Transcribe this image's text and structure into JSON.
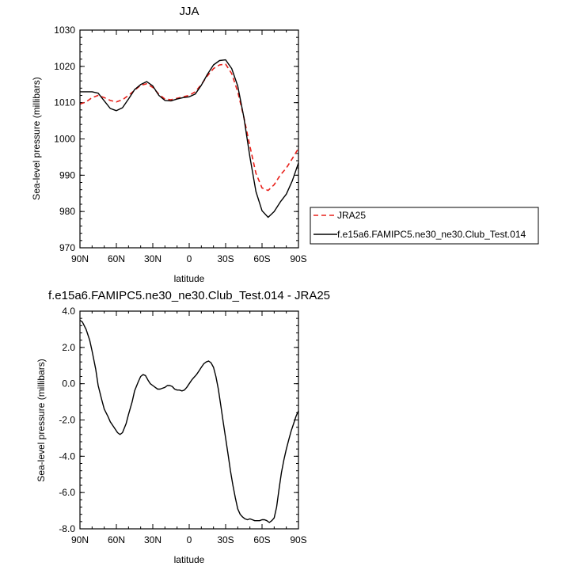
{
  "chart_data": [
    {
      "type": "line",
      "title": "JJA",
      "xlabel": "latitude",
      "ylabel": "Sea-level pressure (millibars)",
      "xlim": [
        90,
        -90
      ],
      "ylim": [
        970,
        1030
      ],
      "x_ticks": [
        90,
        60,
        30,
        0,
        -30,
        -60,
        -90
      ],
      "x_tick_labels": [
        "90N",
        "60N",
        "30N",
        "0",
        "30S",
        "60S",
        "90S"
      ],
      "y_ticks": [
        970,
        980,
        990,
        1000,
        1010,
        1020,
        1030
      ],
      "y_tick_labels": [
        "970",
        "980",
        "990",
        "1000",
        "1010",
        "1020",
        "1030"
      ],
      "grid": false,
      "legend_position": "right",
      "series": [
        {
          "name": "JRA25",
          "color": "#e8201a",
          "dash": "dashed",
          "x": [
            90,
            85,
            80,
            75,
            70,
            65,
            60,
            55,
            50,
            45,
            40,
            35,
            30,
            25,
            20,
            15,
            10,
            5,
            0,
            -5,
            -10,
            -15,
            -20,
            -25,
            -30,
            -35,
            -40,
            -45,
            -50,
            -55,
            -60,
            -65,
            -70,
            -75,
            -80,
            -85,
            -90
          ],
          "y": [
            1009.6,
            1010.2,
            1011.4,
            1012.0,
            1011.4,
            1010.6,
            1010.2,
            1010.8,
            1012.0,
            1013.4,
            1014.8,
            1015.2,
            1014.2,
            1012.3,
            1011.0,
            1010.8,
            1011.2,
            1011.6,
            1012.0,
            1013.0,
            1015.0,
            1017.4,
            1019.4,
            1020.4,
            1020.6,
            1018.0,
            1013.0,
            1006.0,
            998.0,
            990.5,
            986.5,
            985.8,
            987.4,
            990.0,
            992.0,
            994.6,
            997.4
          ]
        },
        {
          "name": "f.e15a6.FAMIPC5.ne30_ne30.Club_Test.014",
          "color": "#000000",
          "dash": "solid",
          "x": [
            90,
            85,
            80,
            75,
            70,
            65,
            60,
            55,
            50,
            45,
            40,
            35,
            30,
            25,
            20,
            15,
            10,
            5,
            0,
            -5,
            -10,
            -15,
            -20,
            -25,
            -30,
            -35,
            -40,
            -45,
            -50,
            -55,
            -60,
            -65,
            -70,
            -75,
            -80,
            -85,
            -90
          ],
          "y": [
            1013.0,
            1013.0,
            1013.0,
            1012.6,
            1010.5,
            1008.4,
            1007.8,
            1008.6,
            1011.0,
            1013.6,
            1015.0,
            1015.8,
            1014.6,
            1012.0,
            1010.6,
            1010.5,
            1011.0,
            1011.4,
            1011.6,
            1012.4,
            1014.8,
            1017.8,
            1020.4,
            1021.6,
            1021.8,
            1019.4,
            1014.6,
            1006.0,
            995.0,
            985.5,
            980.2,
            978.4,
            980.0,
            982.6,
            984.8,
            988.5,
            993.4
          ]
        }
      ]
    },
    {
      "type": "line",
      "title": "f.e15a6.FAMIPC5.ne30_ne30.Club_Test.014 - JRA25",
      "xlabel": "latitude",
      "ylabel": "Sea-level pressure (millibars)",
      "xlim": [
        90,
        -90
      ],
      "ylim": [
        -8,
        4
      ],
      "x_ticks": [
        90,
        60,
        30,
        0,
        -30,
        -60,
        -90
      ],
      "x_tick_labels": [
        "90N",
        "60N",
        "30N",
        "0",
        "30S",
        "60S",
        "90S"
      ],
      "y_ticks": [
        -8,
        -6,
        -4,
        -2,
        0,
        2,
        4
      ],
      "y_tick_labels": [
        "-8.0",
        "-6.0",
        "-4.0",
        "-2.0",
        "0.0",
        "2.0",
        "4.0"
      ],
      "grid": false,
      "series": [
        {
          "color": "#000000",
          "dash": "solid",
          "x": [
            90,
            88,
            85,
            82,
            80,
            77,
            75,
            72,
            70,
            67,
            65,
            63,
            61,
            59,
            57,
            55,
            52,
            50,
            47,
            45,
            42,
            40,
            38,
            36,
            34,
            32,
            30,
            28,
            26,
            24,
            22,
            20,
            18,
            16,
            14,
            12,
            10,
            8,
            6,
            4,
            2,
            0,
            -2,
            -4,
            -6,
            -8,
            -10,
            -12,
            -14,
            -16,
            -18,
            -20,
            -22,
            -24,
            -26,
            -28,
            -30,
            -32,
            -34,
            -36,
            -38,
            -40,
            -42,
            -44,
            -46,
            -48,
            -50,
            -52,
            -54,
            -56,
            -58,
            -60,
            -62,
            -64,
            -66,
            -68,
            -70,
            -72,
            -74,
            -76,
            -78,
            -80,
            -82,
            -84,
            -86,
            -88,
            -90
          ],
          "y": [
            3.5,
            3.4,
            3.0,
            2.4,
            1.8,
            0.8,
            -0.1,
            -0.9,
            -1.4,
            -1.8,
            -2.1,
            -2.3,
            -2.5,
            -2.7,
            -2.8,
            -2.7,
            -2.2,
            -1.7,
            -1.0,
            -0.4,
            0.1,
            0.4,
            0.5,
            0.45,
            0.2,
            0.0,
            -0.1,
            -0.2,
            -0.3,
            -0.3,
            -0.25,
            -0.2,
            -0.1,
            -0.1,
            -0.15,
            -0.3,
            -0.35,
            -0.35,
            -0.4,
            -0.35,
            -0.2,
            0.0,
            0.2,
            0.35,
            0.5,
            0.7,
            0.9,
            1.1,
            1.2,
            1.25,
            1.15,
            0.9,
            0.4,
            -0.3,
            -1.2,
            -2.1,
            -3.0,
            -3.9,
            -4.8,
            -5.6,
            -6.3,
            -6.9,
            -7.2,
            -7.35,
            -7.45,
            -7.5,
            -7.45,
            -7.5,
            -7.55,
            -7.55,
            -7.55,
            -7.5,
            -7.5,
            -7.55,
            -7.65,
            -7.55,
            -7.4,
            -6.8,
            -5.8,
            -4.9,
            -4.2,
            -3.6,
            -3.1,
            -2.6,
            -2.2,
            -1.8,
            -1.5
          ]
        }
      ]
    }
  ]
}
